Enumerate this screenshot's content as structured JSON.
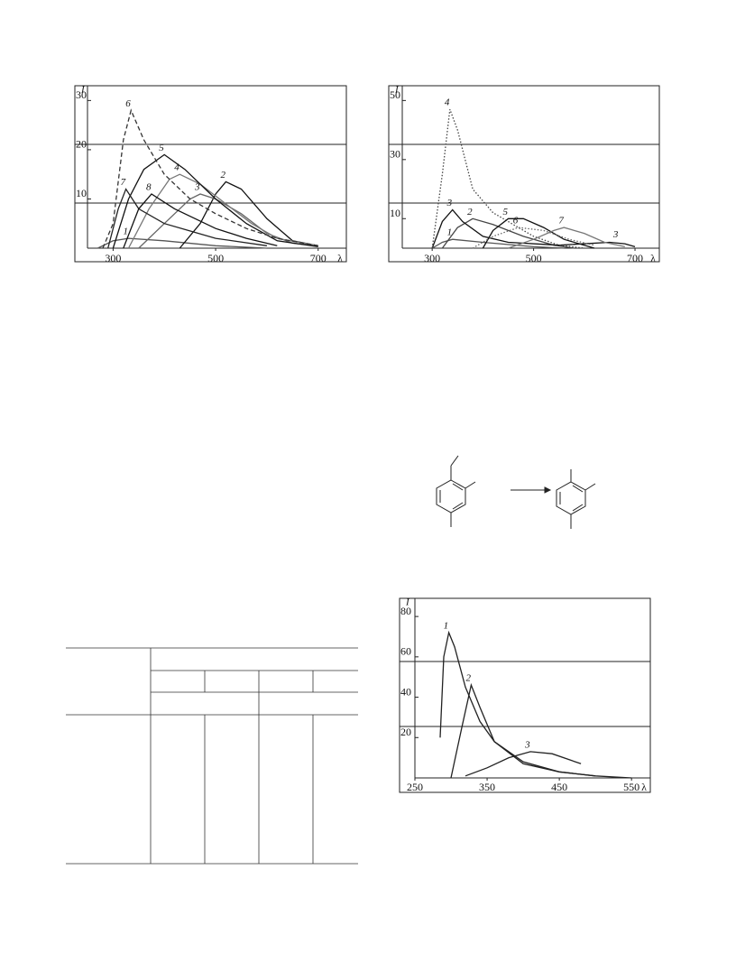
{
  "chart_data": [
    {
      "type": "line",
      "y_label": "I",
      "x_label": "λ",
      "xlim": [
        250,
        755
      ],
      "ylim": [
        0,
        33
      ],
      "xticks": [
        300,
        500,
        700
      ],
      "yticks": [
        10,
        20,
        30
      ],
      "series": [
        {
          "name": "1",
          "color": "#555",
          "x": [
            270,
            300,
            330,
            400,
            500,
            600
          ],
          "values": [
            0,
            1.5,
            2,
            1.5,
            0.5,
            0
          ]
        },
        {
          "name": "2",
          "color": "#111",
          "x": [
            430,
            470,
            500,
            520,
            550,
            600,
            650,
            700
          ],
          "values": [
            0,
            5,
            11,
            13.5,
            12,
            6,
            1.5,
            0.5
          ]
        },
        {
          "name": "3",
          "color": "#666",
          "x": [
            350,
            400,
            450,
            470,
            500,
            550,
            600,
            650,
            700
          ],
          "values": [
            0,
            5,
            10,
            11,
            10,
            7,
            3,
            1,
            0.5
          ]
        },
        {
          "name": "4",
          "color": "#777",
          "x": [
            330,
            370,
            410,
            430,
            470,
            520,
            570,
            620,
            700
          ],
          "values": [
            0,
            8,
            14,
            15,
            13,
            9,
            5,
            2,
            0.5
          ]
        },
        {
          "name": "5",
          "color": "#111",
          "x": [
            300,
            330,
            360,
            400,
            440,
            500,
            560,
            620,
            700
          ],
          "values": [
            0,
            10,
            16,
            19,
            16,
            10,
            5,
            1.5,
            0.3
          ]
        },
        {
          "name": "6",
          "color": "#333",
          "line_style": "dashed",
          "x": [
            280,
            300,
            320,
            335,
            360,
            400,
            450,
            500,
            560,
            620,
            700
          ],
          "values": [
            0,
            5,
            22,
            28,
            22,
            15,
            10,
            7,
            4,
            2,
            0.5
          ]
        },
        {
          "name": "7",
          "color": "#222",
          "x": [
            290,
            310,
            325,
            350,
            400,
            500,
            600
          ],
          "values": [
            0,
            8,
            12,
            8,
            5,
            2,
            0.5
          ]
        },
        {
          "name": "8",
          "color": "#111",
          "x": [
            320,
            350,
            375,
            420,
            500,
            560,
            620
          ],
          "values": [
            0,
            8,
            11,
            8,
            4,
            2,
            0.5
          ]
        }
      ]
    },
    {
      "type": "line",
      "y_label": "I",
      "x_label": "λ",
      "xlim": [
        241,
        748
      ],
      "ylim": [
        0,
        55
      ],
      "xticks": [
        300,
        500,
        700
      ],
      "yticks": [
        10,
        30,
        50
      ],
      "series": [
        {
          "name": "1",
          "color": "#555",
          "x": [
            300,
            320,
            340,
            400,
            500,
            560
          ],
          "values": [
            0,
            2,
            3,
            2,
            0.5,
            0
          ]
        },
        {
          "name": "2",
          "color": "#444",
          "x": [
            320,
            350,
            380,
            420,
            480,
            540,
            580
          ],
          "values": [
            0,
            7,
            10,
            8,
            4,
            1,
            0
          ]
        },
        {
          "name": "3",
          "color": "#111",
          "x": [
            300,
            320,
            340,
            360,
            400,
            450,
            550,
            650,
            680,
            700
          ],
          "values": [
            0,
            9,
            13,
            9,
            4,
            2,
            1,
            2,
            1.5,
            0.5
          ]
        },
        {
          "name": "4",
          "color": "#444",
          "line_style": "dotted",
          "x": [
            300,
            320,
            335,
            350,
            380,
            420,
            460,
            500,
            550,
            600
          ],
          "values": [
            0,
            25,
            47,
            40,
            20,
            12,
            8,
            4,
            1,
            0
          ]
        },
        {
          "name": "5",
          "color": "#111",
          "x": [
            400,
            420,
            450,
            480,
            520,
            560,
            600,
            620
          ],
          "values": [
            0,
            6,
            10,
            10,
            7,
            3,
            1,
            0
          ]
        },
        {
          "name": "6",
          "color": "#666",
          "line_style": "dotted",
          "x": [
            380,
            420,
            470,
            520,
            570,
            620
          ],
          "values": [
            0,
            4,
            7,
            6,
            3,
            1
          ]
        },
        {
          "name": "7",
          "color": "#777",
          "x": [
            450,
            500,
            540,
            560,
            600,
            640,
            680
          ],
          "values": [
            0,
            3,
            6,
            7,
            5,
            2,
            0.5
          ]
        }
      ]
    },
    {
      "type": "line",
      "y_label": "I",
      "x_label": "λ",
      "xlim": [
        250,
        576
      ],
      "ylim": [
        0,
        89
      ],
      "xticks": [
        250,
        350,
        450,
        550
      ],
      "yticks": [
        20,
        40,
        60,
        80
      ],
      "series": [
        {
          "name": "1",
          "color": "#222",
          "x": [
            285,
            290,
            297,
            305,
            320,
            340,
            360,
            400,
            450,
            500
          ],
          "values": [
            20,
            60,
            72,
            65,
            45,
            28,
            18,
            8,
            3,
            1
          ]
        },
        {
          "name": "2",
          "color": "#222",
          "x": [
            300,
            315,
            328,
            340,
            360,
            400,
            450,
            500,
            550
          ],
          "values": [
            0,
            25,
            46,
            35,
            18,
            7,
            3,
            1,
            0
          ]
        },
        {
          "name": "3",
          "color": "#222",
          "x": [
            320,
            350,
            380,
            410,
            440,
            480
          ],
          "values": [
            1,
            5,
            10,
            13,
            12,
            7
          ]
        }
      ]
    }
  ]
}
